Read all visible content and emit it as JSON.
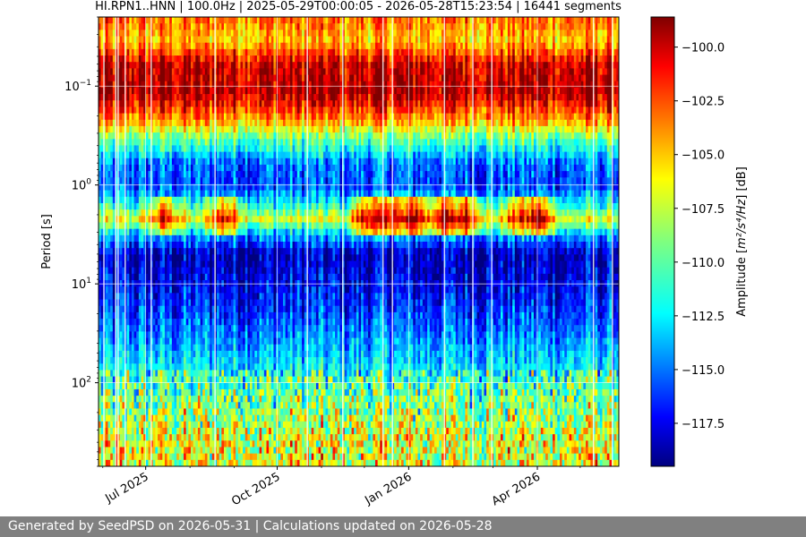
{
  "chart_data": {
    "type": "heatmap",
    "title": "HI.RPN1..HNN | 100.0Hz | 2025-05-29T00:00:05 - 2026-05-28T15:23:54 | 16441 segments",
    "ylabel": "Period [s]",
    "x_range": [
      "2025-05-29",
      "2026-05-28"
    ],
    "x_ticks": [
      {
        "date": "2025-07-01",
        "label": "Jul 2025"
      },
      {
        "date": "2025-10-01",
        "label": "Oct 2025"
      },
      {
        "date": "2026-01-01",
        "label": "Jan 2026"
      },
      {
        "date": "2026-04-01",
        "label": "Apr 2026"
      }
    ],
    "y_scale": "log",
    "y_range": [
      0.02,
      700
    ],
    "y_inverted": true,
    "y_ticks": [
      {
        "value": 0.1,
        "base": "10",
        "exp": "−1"
      },
      {
        "value": 1,
        "base": "10",
        "exp": "0"
      },
      {
        "value": 10,
        "base": "10",
        "exp": "1"
      },
      {
        "value": 100,
        "base": "10",
        "exp": "2"
      }
    ],
    "grid": true,
    "colorscale": "jet",
    "colorbar": {
      "label_main": "Amplitude [",
      "label_math": "m²/s⁴/Hz",
      "label_end": "] [dB]",
      "range": [
        -119.5,
        -98.6
      ],
      "ticks": [
        "−100.0",
        "−102.5",
        "−105.0",
        "−107.5",
        "−110.0",
        "−112.5",
        "−115.0",
        "−117.5"
      ],
      "tick_values": [
        -100,
        -102.5,
        -105,
        -107.5,
        -110,
        -112.5,
        -115,
        -117.5
      ]
    },
    "period_profile": [
      {
        "period": 0.02,
        "level": -103
      },
      {
        "period": 0.035,
        "level": -105
      },
      {
        "period": 0.06,
        "level": -100
      },
      {
        "period": 0.12,
        "level": -99.5
      },
      {
        "period": 0.22,
        "level": -104
      },
      {
        "period": 0.35,
        "level": -110
      },
      {
        "period": 0.6,
        "level": -115
      },
      {
        "period": 1.0,
        "level": -116
      },
      {
        "period": 1.6,
        "level": -112
      },
      {
        "period": 2.2,
        "level": -107
      },
      {
        "period": 3.0,
        "level": -113
      },
      {
        "period": 5.0,
        "level": -118.5
      },
      {
        "period": 10,
        "level": -117.5
      },
      {
        "period": 25,
        "level": -115.5
      },
      {
        "period": 60,
        "level": -113
      },
      {
        "period": 150,
        "level": -110.5
      },
      {
        "period": 400,
        "level": -108
      }
    ],
    "seasonal_events": [
      {
        "date": "2025-12-05",
        "level": -100.5
      },
      {
        "date": "2025-12-20",
        "level": -100
      },
      {
        "date": "2026-01-05",
        "level": -99.5
      },
      {
        "date": "2026-01-25",
        "level": -100
      },
      {
        "date": "2026-02-10",
        "level": -100.5
      },
      {
        "date": "2026-03-20",
        "level": -104
      },
      {
        "date": "2026-04-01",
        "level": -101
      },
      {
        "date": "2025-08-25",
        "level": -103.5
      },
      {
        "date": "2025-07-15",
        "level": -105
      }
    ]
  },
  "footer": {
    "text": "Generated by SeedPSD on 2026-05-31 | Calculations updated on 2026-05-28"
  }
}
